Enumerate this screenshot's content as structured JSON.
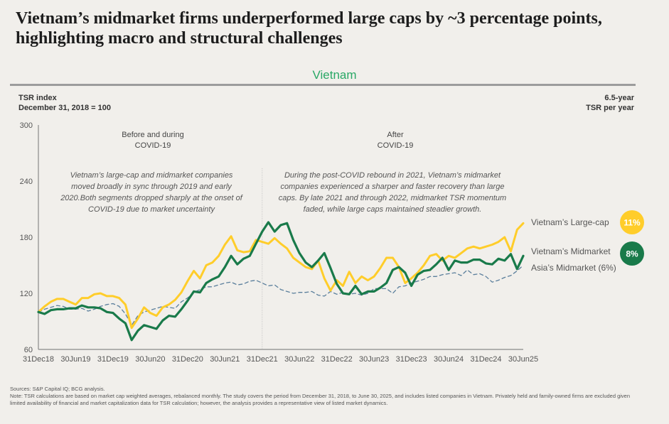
{
  "header": {
    "title": "Vietnam’s midmarket firms underperformed large caps by ~3 percentage points, highlighting macro and structural challenges",
    "subtitle": "Vietnam"
  },
  "axis_labels": {
    "y_line1": "TSR index",
    "y_line2": "December 31, 2018 = 100",
    "right_line1": "6.5-year",
    "right_line2": "TSR per year"
  },
  "footer": {
    "sources": "Sources: S&P Capital IQ; BCG analysis.",
    "note": "Note: TSR calculations are based on market cap weighted averages, rebalanced monthly. The study covers the period from December 31, 2018, to June 30, 2025, and includes listed companies in Vietnam. Privately held and family-owned firms are excluded given limited availability of financial and market capitalization data for TSR calculation; however, the analysis provides a representative view of listed market dynamics."
  },
  "colors": {
    "large_cap": "#ffcd2a",
    "midmarket": "#197a4a",
    "asia_mid": "#5b7f9c",
    "subtitle": "#2aa866"
  },
  "chart_data": {
    "type": "line",
    "title": "Vietnam",
    "ylabel": "TSR index (December 31, 2018 = 100)",
    "xlabel": "",
    "ylim": [
      60,
      300
    ],
    "yticks": [
      60,
      120,
      180,
      240,
      300
    ],
    "xticks": [
      "31Dec18",
      "30Jun19",
      "31Dec19",
      "30Jun20",
      "31Dec20",
      "30Jun21",
      "31Dec21",
      "30Jun22",
      "31Dec22",
      "30Jun23",
      "31Dec23",
      "30Jun24",
      "31Dec24",
      "30Jun25"
    ],
    "x_months": 78,
    "grid": false,
    "legend": "right",
    "periods": [
      {
        "label_line1": "Before and during",
        "label_line2": "COVID-19"
      },
      {
        "label_line1": "After",
        "label_line2": "COVID-19"
      }
    ],
    "divider_month": 36,
    "annotations": [
      {
        "lines": [
          "Vietnam’s large-cap and midmarket companies",
          "moved broadly in sync through 2019 and early",
          "2020.Both segments dropped sharply at the onset of",
          "COVID-19 due to market uncertainty"
        ]
      },
      {
        "lines": [
          "During the post-COVID rebound in 2021, Vietnam’s midmarket",
          "companies experienced a sharper and faster recovery than large",
          "caps. By late 2021 and through 2022, midmarket TSR momentum",
          "faded, while large caps maintained steadier growth."
        ]
      }
    ],
    "series": [
      {
        "name": "Vietnam’s Large-cap",
        "badge": "11%",
        "values": [
          100,
          106,
          111,
          114,
          114,
          111,
          108,
          115,
          115,
          119,
          120,
          117,
          117,
          115,
          108,
          83,
          93,
          105,
          99,
          96,
          105,
          108,
          113,
          121,
          133,
          144,
          136,
          150,
          153,
          160,
          172,
          181,
          166,
          164,
          165,
          177,
          175,
          173,
          179,
          173,
          168,
          158,
          153,
          148,
          146,
          155,
          136,
          123,
          134,
          128,
          143,
          131,
          138,
          134,
          138,
          147,
          158,
          158,
          148,
          131,
          136,
          142,
          150,
          160,
          162,
          155,
          160,
          158,
          163,
          168,
          170,
          168,
          170,
          172,
          175,
          180,
          165,
          188,
          195
        ]
      },
      {
        "name": "Vietnam’s Midmarket",
        "badge": "8%",
        "values": [
          100,
          98,
          102,
          103,
          103,
          104,
          104,
          107,
          105,
          105,
          104,
          100,
          99,
          93,
          88,
          70,
          80,
          86,
          84,
          82,
          91,
          96,
          95,
          103,
          112,
          122,
          121,
          131,
          135,
          138,
          148,
          160,
          151,
          157,
          160,
          173,
          186,
          196,
          186,
          193,
          195,
          177,
          163,
          153,
          148,
          155,
          163,
          147,
          130,
          120,
          119,
          128,
          119,
          122,
          122,
          126,
          131,
          145,
          148,
          142,
          128,
          140,
          144,
          145,
          151,
          158,
          145,
          155,
          153,
          153,
          156,
          156,
          152,
          151,
          157,
          155,
          162,
          146,
          160
        ]
      },
      {
        "name": "Asia’s Midmarket",
        "badge": "6%",
        "values": [
          100,
          103,
          105,
          107,
          106,
          103,
          103,
          104,
          101,
          103,
          106,
          108,
          109,
          106,
          98,
          86,
          96,
          100,
          102,
          104,
          106,
          105,
          104,
          111,
          115,
          121,
          124,
          127,
          127,
          129,
          131,
          132,
          129,
          130,
          133,
          134,
          131,
          128,
          129,
          124,
          122,
          120,
          121,
          121,
          122,
          118,
          117,
          122,
          119,
          121,
          119,
          120,
          118,
          120,
          125,
          125,
          125,
          120,
          127,
          128,
          131,
          133,
          135,
          138,
          138,
          140,
          141,
          142,
          139,
          145,
          140,
          141,
          138,
          132,
          134,
          137,
          139,
          144,
          150
        ]
      }
    ]
  }
}
